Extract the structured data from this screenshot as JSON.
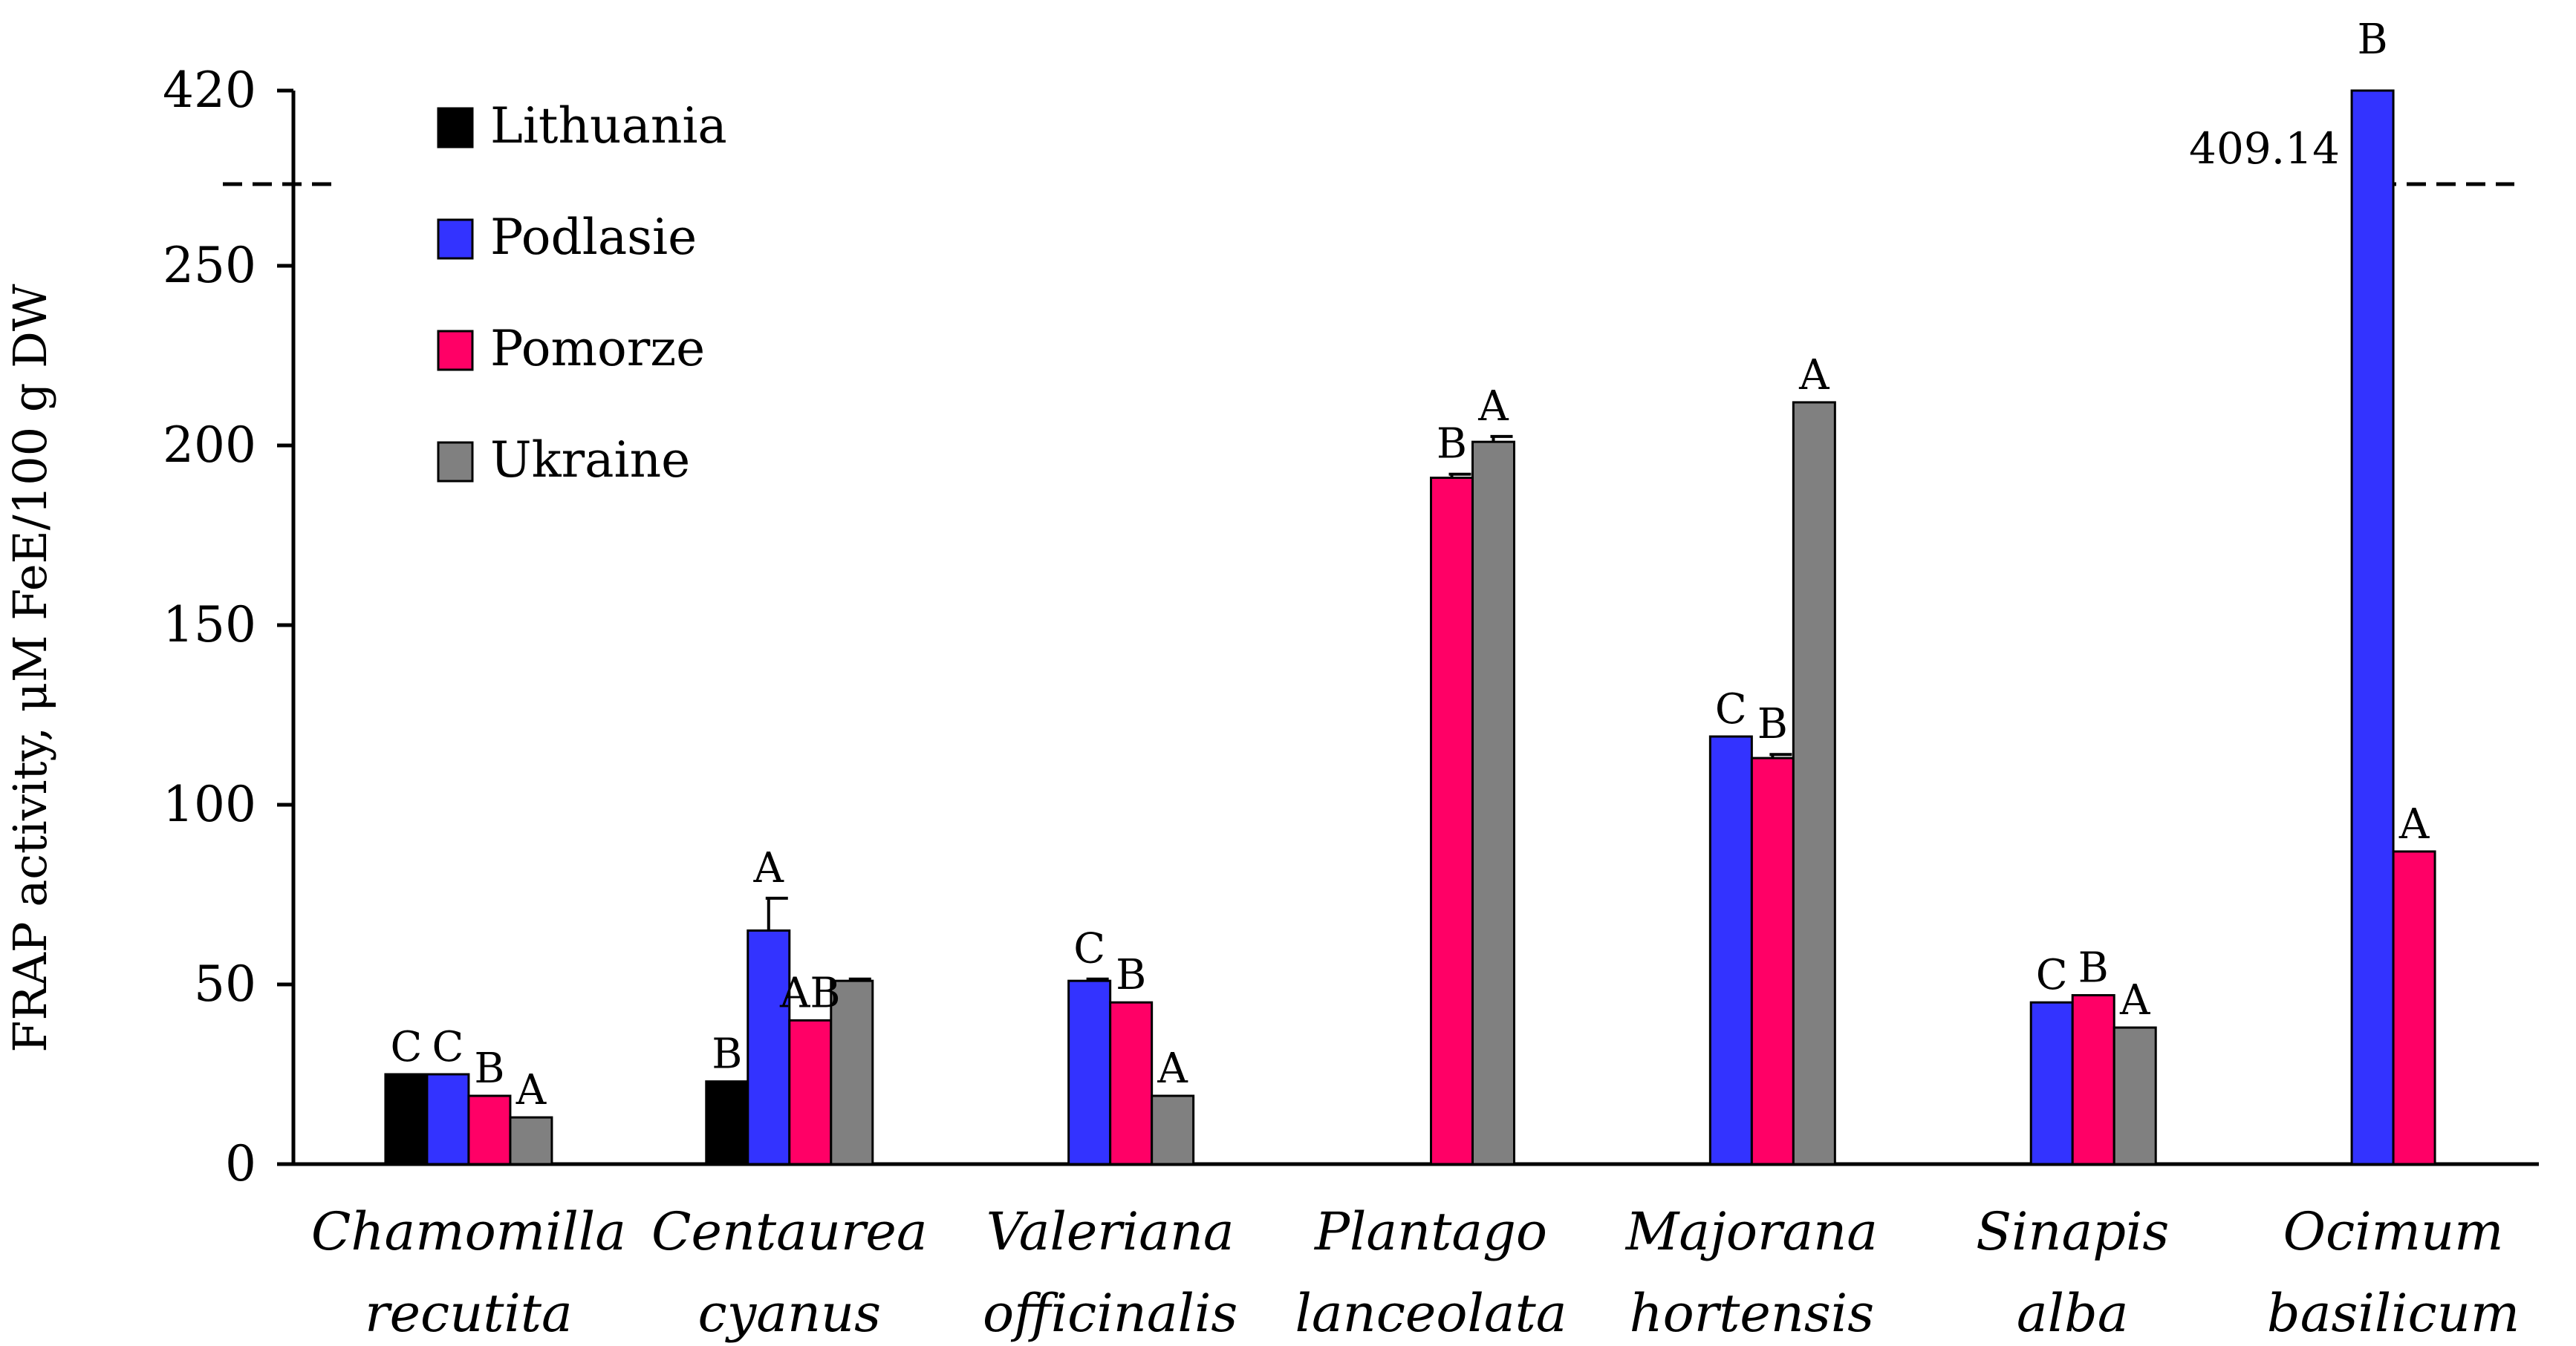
{
  "chart_data": {
    "type": "bar",
    "ylabel": "FRAP activity, μM FeE/100 g DW",
    "yticks": [
      "0",
      "50",
      "100",
      "150",
      "200",
      "250",
      "420"
    ],
    "ylim": [
      0,
      275
    ],
    "axis_break": {
      "label": "409.14",
      "value_top": 420
    },
    "categories": [
      [
        "Chamomilla",
        "recutita"
      ],
      [
        "Centaurea",
        "cyanus"
      ],
      [
        "Valeriana",
        "officinalis"
      ],
      [
        "Plantago",
        "lanceolata"
      ],
      [
        "Majorana",
        "hortensis"
      ],
      [
        "Sinapis",
        "alba"
      ],
      [
        "Ocimum",
        "basilicum"
      ]
    ],
    "series": [
      {
        "name": "Lithuania",
        "color": "#000000",
        "values": [
          25,
          23,
          null,
          null,
          null,
          null,
          null
        ],
        "errors": [
          0,
          0,
          0,
          0,
          0,
          0,
          0
        ],
        "letters": [
          "C",
          "B",
          "",
          "",
          "",
          "",
          ""
        ]
      },
      {
        "name": "Podlasie",
        "color": "#3333ff",
        "values": [
          25,
          65,
          51,
          null,
          119,
          45,
          409.14
        ],
        "errors": [
          0,
          9,
          0.5,
          0,
          0,
          0,
          0
        ],
        "letters": [
          "C",
          "A",
          "C",
          "",
          "C",
          "C",
          "B"
        ]
      },
      {
        "name": "Pomorze",
        "color": "#ff0066",
        "values": [
          19,
          40,
          45,
          191,
          113,
          47,
          87
        ],
        "errors": [
          0,
          0,
          0,
          1,
          1,
          0,
          0
        ],
        "letters": [
          "B",
          "AB",
          "B",
          "B",
          "B",
          "B",
          "A"
        ]
      },
      {
        "name": "Ukraine",
        "color": "#808080",
        "values": [
          13,
          51,
          19,
          201,
          212,
          38,
          null
        ],
        "errors": [
          0,
          0.5,
          0,
          1.5,
          0,
          0,
          0
        ],
        "letters": [
          "A",
          "",
          "A",
          "A",
          "A",
          "A",
          ""
        ]
      }
    ]
  }
}
